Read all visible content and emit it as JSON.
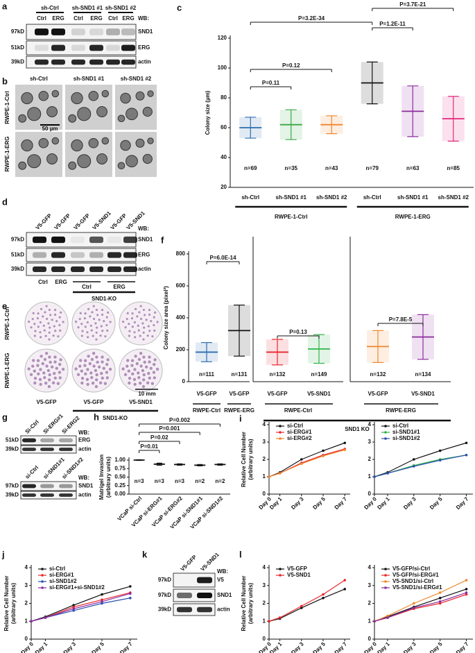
{
  "panels": [
    "a",
    "b",
    "c",
    "d",
    "e",
    "f",
    "g",
    "h",
    "i",
    "j",
    "k",
    "l"
  ],
  "blot_a": {
    "groups": [
      "sh-Ctrl",
      "sh-SND1 #1",
      "sh-SND1 #2"
    ],
    "lanes": [
      "Ctrl",
      "ERG",
      "Ctrl",
      "ERG",
      "Ctrl",
      "ERG"
    ],
    "wb": "WB:",
    "rows": [
      {
        "mw": "97kD",
        "protein": "SND1"
      },
      {
        "mw": "51kD",
        "protein": "ERG"
      },
      {
        "mw": "39kD",
        "protein": "actin"
      }
    ]
  },
  "images_b": {
    "columns": [
      "sh-Ctrl",
      "sh-SND1 #1",
      "sh-SND1 #2"
    ],
    "rows": [
      "RWPE-1-Ctrl",
      "RWPE-1-ERG"
    ],
    "scale": "50 µm"
  },
  "blot_d": {
    "lanes": [
      "V5-GFP",
      "V5-GFP",
      "V5-GFP",
      "V5-SND1",
      "V5-GFP",
      "V5-SND1"
    ],
    "wb": "WB:",
    "rows": [
      {
        "mw": "97kD",
        "protein": "SND1"
      },
      {
        "mw": "51kD",
        "protein": "ERG"
      },
      {
        "mw": "39kD",
        "protein": "actin"
      }
    ],
    "groups": [
      "Ctrl",
      "ERG",
      "Ctrl",
      "ERG"
    ],
    "ko": "SND1-KO"
  },
  "images_e": {
    "rows": [
      "RWPE-1-Ctrl",
      "RWPE-1-ERG"
    ],
    "columns": [
      "V5-GFP",
      "V5-GFP",
      "V5-SND1"
    ],
    "ko": "SND1-KO",
    "scale": "10 mm"
  },
  "blot_g1": {
    "lanes": [
      "Si-Ctrl",
      "Si-ERG#1",
      "Si-ERG2"
    ],
    "wb": "WB:",
    "rows": [
      {
        "mw": "51kD",
        "protein": "ERG"
      },
      {
        "mw": "39kD",
        "protein": "actin"
      }
    ]
  },
  "blot_g2": {
    "lanes": [
      "si-Ctrl",
      "si-SND1#1",
      "si-SND1#2"
    ],
    "wb": "WB:",
    "rows": [
      {
        "mw": "97kD",
        "protein": "SND1"
      },
      {
        "mw": "39kD",
        "protein": "actin"
      }
    ]
  },
  "blot_k": {
    "lanes": [
      "V5-GFP",
      "V5-SND1"
    ],
    "wb": "WB:",
    "rows": [
      {
        "mw": "97kD",
        "protein": "V5"
      },
      {
        "mw": "97kD",
        "protein": "SND1"
      },
      {
        "mw": "39kD",
        "protein": "actin"
      }
    ]
  },
  "chart_data": [
    {
      "type": "dot",
      "ylabel": [
        "Colony size (µm)"
      ],
      "categories": [
        "sh-Ctrl",
        "sh-SND1 #1",
        "sh-SND1 #2",
        "sh-Ctrl",
        "sh-SND1 #1",
        "sh-SND1 #2"
      ],
      "values": [
        60,
        62,
        62,
        90,
        71,
        66
      ],
      "sd": [
        7,
        10,
        6,
        14,
        17,
        15
      ],
      "colors": [
        "#2b6cb0",
        "#3aa845",
        "#f0862a",
        "#111111",
        "#8b2c9e",
        "#e0287d"
      ],
      "n_labels": [
        "n=69",
        "n=35",
        "n=43",
        "n=79",
        "n=63",
        "n=85"
      ],
      "groups": [
        "RWPE-1-Ctrl",
        "RWPE-1-ERG"
      ],
      "annotations": [
        "P=0.11",
        "P=0.12",
        "P=3.2E-34",
        "P=1.2E-11",
        "P=3.7E-21"
      ],
      "ylim": [
        20,
        120
      ],
      "yticks": [
        20,
        40,
        60,
        80,
        100,
        120
      ]
    },
    {
      "type": "dot",
      "ylabel": [
        "Colony size area (pixel²)"
      ],
      "categories": [
        "V5-GFP",
        "V5-GFP",
        "V5-GFP",
        "V5-SND1",
        "V5-GFP",
        "V5-SND1"
      ],
      "values": [
        185,
        320,
        185,
        205,
        220,
        280
      ],
      "sd": [
        60,
        160,
        80,
        90,
        100,
        140
      ],
      "colors": [
        "#2b6cb0",
        "#111111",
        "#e8262b",
        "#2fb34a",
        "#f0862a",
        "#8b2c9e"
      ],
      "n_labels": [
        "n=111",
        "n=131",
        "n=132",
        "n=149",
        "n=132",
        "n=134"
      ],
      "sublabels": [
        "RWPE-Ctrl",
        "RWPE-ERG",
        "RWPE-Ctrl",
        "RWPE-ERG"
      ],
      "group": "SND1 KO",
      "annotations": [
        "P=6.0E-14",
        "P=0.13",
        "P=7.8E-5"
      ],
      "ylim": [
        0,
        800
      ],
      "yticks": [
        0,
        200,
        400,
        600,
        800
      ]
    },
    {
      "type": "dot",
      "ylabel": [
        "Matrigel Invasion",
        "(arbitrary units)"
      ],
      "categories": [
        "VCaP si-Ctrl",
        "VCaP si-ERG#1",
        "VCaP si-ERG#2",
        "VCaP si-SND1#1",
        "VCaP si-SND1#2"
      ],
      "values": [
        1.0,
        0.88,
        0.87,
        0.85,
        0.87
      ],
      "sd": [
        0.01,
        0.03,
        0.02,
        0.02,
        0.02
      ],
      "colors": [
        "#111111",
        "#111111",
        "#111111",
        "#111111",
        "#111111"
      ],
      "n_labels": [
        "n=3",
        "n=3",
        "n=3",
        "n=2",
        "n=2"
      ],
      "annotations": [
        "P=0.01",
        "P=0.02",
        "P=0.001",
        "P=0.002"
      ],
      "ylim": [
        0,
        1
      ],
      "yticks": [
        {
          "value": 0,
          "label": "0.00"
        },
        {
          "value": 0.25,
          "label": "0.25"
        },
        {
          "value": 0.5,
          "label": "0.50"
        },
        {
          "value": 0.75,
          "label": "0.75"
        },
        {
          "value": 1,
          "label": "1.00"
        }
      ]
    },
    {
      "type": "line",
      "ylabel": [
        "Relative Cell Number",
        "(arbitrary units)"
      ],
      "x": [
        0,
        1,
        3,
        5,
        7
      ],
      "xticks": [
        {
          "value": 0,
          "label": "Day 0"
        },
        {
          "value": 1,
          "label": "Day 1"
        },
        {
          "value": 3,
          "label": "Day 3"
        },
        {
          "value": 5,
          "label": "Day 5"
        },
        {
          "value": 7,
          "label": "Day 7"
        }
      ],
      "xlim": [
        0,
        7.5
      ],
      "ylim": [
        0,
        4
      ],
      "yticks": [
        0,
        1,
        2,
        3,
        4
      ],
      "series": [
        {
          "name": "si-Ctrl",
          "color": "#111111",
          "values": [
            1,
            1.25,
            2.0,
            2.5,
            2.95
          ]
        },
        {
          "name": "si-ERG#1",
          "color": "#e8262b",
          "values": [
            1,
            1.2,
            1.8,
            2.25,
            2.6
          ]
        },
        {
          "name": "si-ERG#2",
          "color": "#f0862a",
          "values": [
            1,
            1.2,
            1.75,
            2.2,
            2.55
          ]
        }
      ]
    },
    {
      "type": "line",
      "x": [
        0,
        1,
        3,
        5,
        7
      ],
      "xticks": [
        {
          "value": 0,
          "label": "Day 0"
        },
        {
          "value": 1,
          "label": "Day 1"
        },
        {
          "value": 3,
          "label": "Day 3"
        },
        {
          "value": 5,
          "label": "Day 5"
        },
        {
          "value": 7,
          "label": "Day 7"
        }
      ],
      "xlim": [
        0,
        7.5
      ],
      "ylim": [
        0,
        4
      ],
      "yticks": [
        0,
        1,
        2,
        3,
        4
      ],
      "series": [
        {
          "name": "si-Ctrl",
          "color": "#111111",
          "values": [
            1,
            1.25,
            2.0,
            2.5,
            2.95
          ]
        },
        {
          "name": "si-SND1#1",
          "color": "#2fb34a",
          "values": [
            1,
            1.2,
            1.65,
            2.0,
            2.25
          ]
        },
        {
          "name": "si-SND1#2",
          "color": "#2b4fb0",
          "values": [
            1,
            1.2,
            1.6,
            1.95,
            2.25
          ]
        }
      ]
    },
    {
      "type": "line",
      "ylabel": [
        "Relative Cell Number",
        "(arbitrary units)"
      ],
      "x": [
        0,
        1,
        3,
        5,
        7
      ],
      "xticks": [
        {
          "value": 0,
          "label": "Day 0"
        },
        {
          "value": 1,
          "label": "Day 1"
        },
        {
          "value": 3,
          "label": "Day 3"
        },
        {
          "value": 5,
          "label": "Day 5"
        },
        {
          "value": 7,
          "label": "Day 7"
        }
      ],
      "xlim": [
        0,
        7.5
      ],
      "ylim": [
        0,
        4
      ],
      "yticks": [
        0,
        1,
        2,
        3,
        4
      ],
      "series": [
        {
          "name": "si-Ctrl",
          "color": "#111111",
          "values": [
            1,
            1.25,
            1.9,
            2.5,
            2.95
          ]
        },
        {
          "name": "si-ERG#1",
          "color": "#e8262b",
          "values": [
            1,
            1.2,
            1.8,
            2.2,
            2.6
          ]
        },
        {
          "name": "si-SND1#2",
          "color": "#2b4fb0",
          "values": [
            1,
            1.2,
            1.6,
            2.0,
            2.3
          ]
        },
        {
          "name": "si-ERG#1+si-SND1#2",
          "color": "#8b2c9e",
          "values": [
            1,
            1.2,
            1.7,
            2.1,
            2.55
          ]
        }
      ]
    },
    {
      "type": "line",
      "ylabel": [
        "Relative Cell Number",
        "(arbitrary units)"
      ],
      "x": [
        0,
        1,
        3,
        5,
        7
      ],
      "xticks": [
        {
          "value": 0,
          "label": "Day 0"
        },
        {
          "value": 1,
          "label": "Day 1"
        },
        {
          "value": 3,
          "label": "Day 3"
        },
        {
          "value": 5,
          "label": "Day 5"
        },
        {
          "value": 7,
          "label": "Day 7"
        }
      ],
      "xlim": [
        0,
        7.5
      ],
      "ylim": [
        0,
        4
      ],
      "yticks": [
        0,
        1,
        2,
        3,
        4
      ],
      "series": [
        {
          "name": "V5-GFP",
          "color": "#111111",
          "values": [
            1,
            1.15,
            1.75,
            2.3,
            2.8
          ]
        },
        {
          "name": "V5-SND1",
          "color": "#e8262b",
          "values": [
            1,
            1.2,
            1.85,
            2.5,
            3.3
          ]
        }
      ]
    },
    {
      "type": "line",
      "x": [
        0,
        1,
        3,
        5,
        7
      ],
      "xticks": [
        {
          "value": 0,
          "label": "Day 0"
        },
        {
          "value": 1,
          "label": "Day 1"
        },
        {
          "value": 3,
          "label": "Day 3"
        },
        {
          "value": 5,
          "label": "Day 5"
        },
        {
          "value": 7,
          "label": "Day 7"
        }
      ],
      "xlim": [
        0,
        7.5
      ],
      "ylim": [
        0,
        4
      ],
      "yticks": [
        0,
        1,
        2,
        3,
        4
      ],
      "series": [
        {
          "name": "V5-GFP/si-Ctrl",
          "color": "#111111",
          "values": [
            1,
            1.25,
            1.8,
            2.3,
            2.8
          ]
        },
        {
          "name": "V5-GFP/si-ERG#1",
          "color": "#e8262b",
          "values": [
            1,
            1.2,
            1.7,
            2.0,
            2.5
          ]
        },
        {
          "name": "V5-SND1/si-Ctrl",
          "color": "#f0862a",
          "values": [
            1,
            1.3,
            2.0,
            2.6,
            3.3
          ]
        },
        {
          "name": "V5-SND1/si-ERG#1",
          "color": "#8b2c9e",
          "values": [
            1,
            1.2,
            1.75,
            2.1,
            2.6
          ]
        }
      ]
    }
  ]
}
